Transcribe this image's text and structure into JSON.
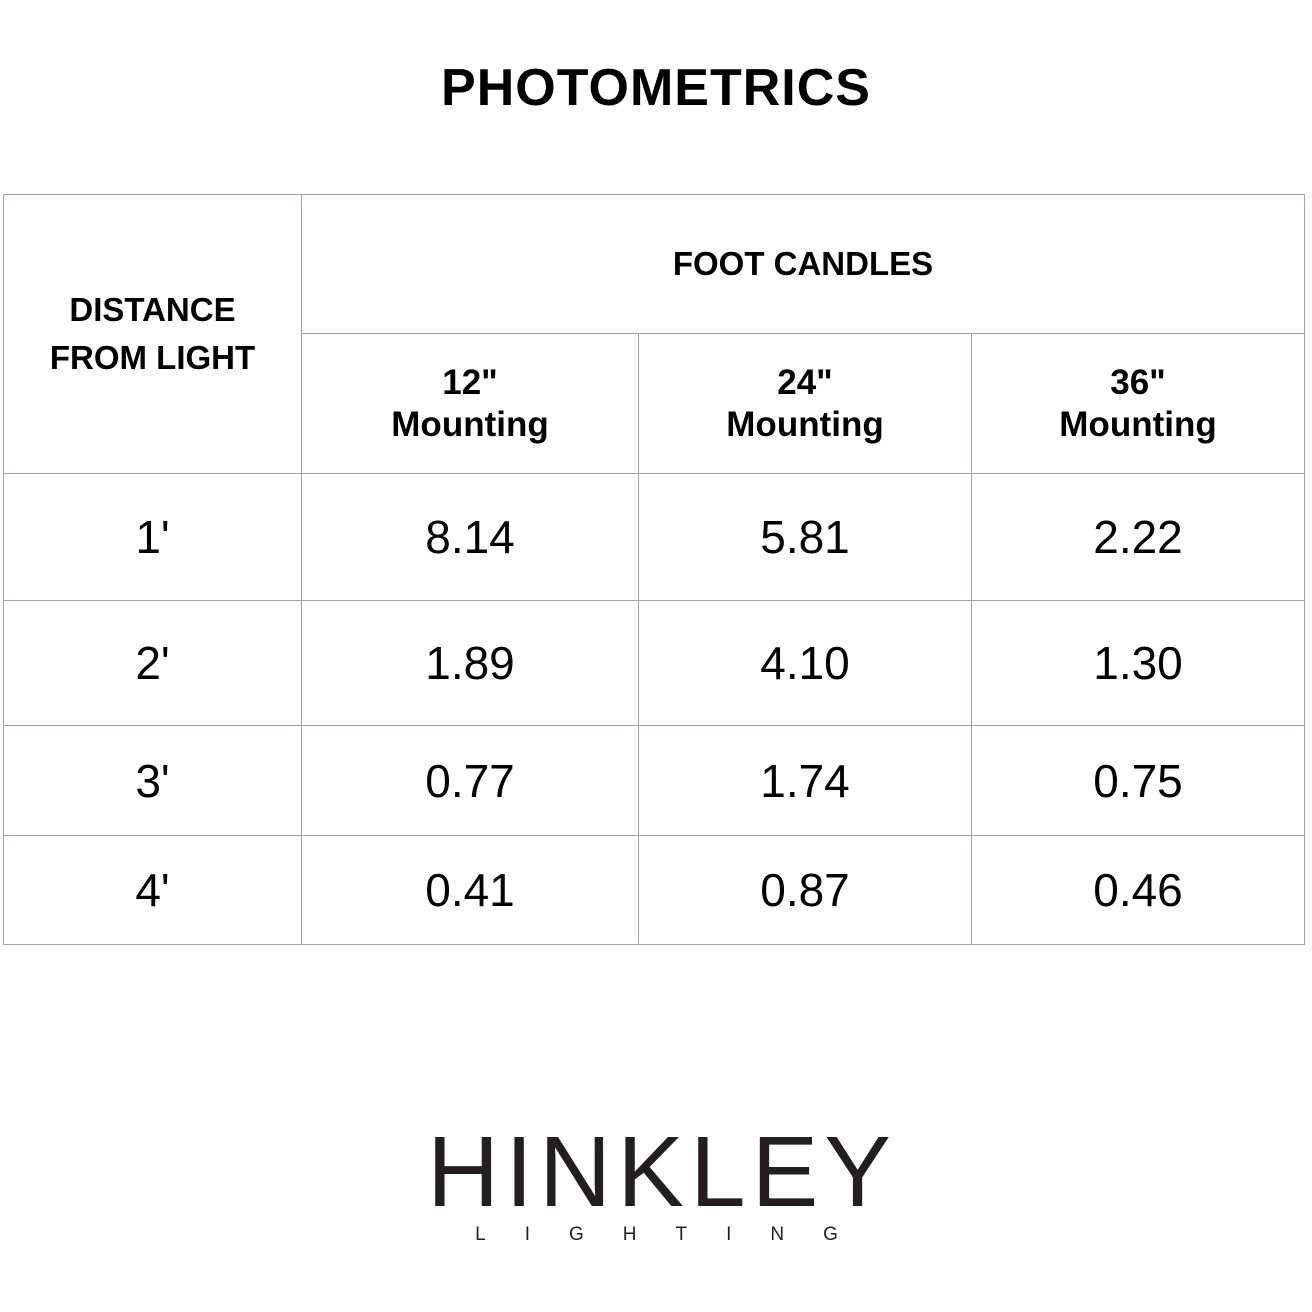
{
  "title": "PHOTOMETRICS",
  "table": {
    "row_header": "DISTANCE FROM LIGHT",
    "row_header_lines": [
      "DISTANCE",
      "FROM LIGHT"
    ],
    "group_header": "FOOT CANDLES",
    "columns": [
      {
        "size": "12\"",
        "label": "Mounting"
      },
      {
        "size": "24\"",
        "label": "Mounting"
      },
      {
        "size": "36\"",
        "label": "Mounting"
      }
    ],
    "rows": [
      {
        "distance": "1'",
        "values": [
          "8.14",
          "5.81",
          "2.22"
        ]
      },
      {
        "distance": "2'",
        "values": [
          "1.89",
          "4.10",
          "1.30"
        ]
      },
      {
        "distance": "3'",
        "values": [
          "0.77",
          "1.74",
          "0.75"
        ]
      },
      {
        "distance": "4'",
        "values": [
          "0.41",
          "0.87",
          "0.46"
        ]
      }
    ]
  },
  "logo": {
    "main": "HINKLEY",
    "sub": "LIGHTING"
  },
  "colors": {
    "border": "#aaa29c",
    "text": "#000000",
    "logo": "#231f20"
  }
}
